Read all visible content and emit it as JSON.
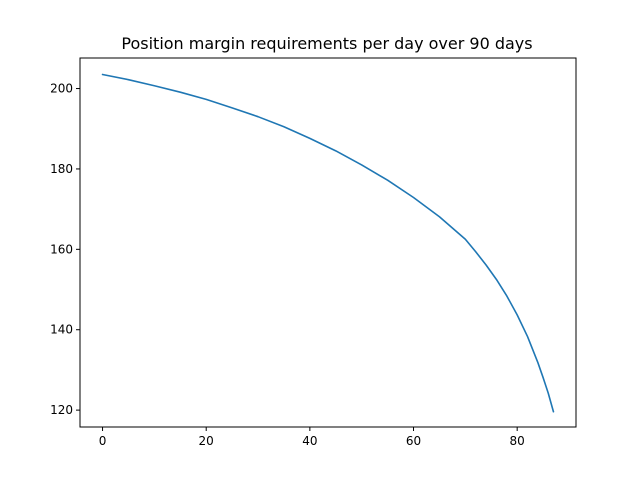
{
  "chart_data": {
    "type": "line",
    "title": "Position margin requirements per day over 90 days",
    "xlabel": "",
    "ylabel": "",
    "xlim": [
      -4.35,
      91.35
    ],
    "ylim": [
      115.8,
      207.6
    ],
    "xticks": [
      0,
      20,
      40,
      60,
      80
    ],
    "yticks": [
      120,
      140,
      160,
      180,
      200
    ],
    "grid": false,
    "legend": "none",
    "colors": {
      "line": "#1f77b4",
      "frame": "#000000"
    },
    "series": [
      {
        "x": [
          0,
          5,
          10,
          15,
          20,
          25,
          30,
          35,
          40,
          45,
          50,
          55,
          60,
          65,
          70,
          72,
          74,
          76,
          78,
          80,
          82,
          84,
          85,
          86,
          87
        ],
        "y": [
          203.5,
          202.2,
          200.7,
          199.1,
          197.3,
          195.2,
          193.0,
          190.5,
          187.6,
          184.5,
          181.0,
          177.2,
          172.9,
          168.1,
          162.5,
          159.4,
          156.1,
          152.5,
          148.4,
          143.7,
          138.3,
          131.8,
          128.1,
          124.2,
          119.6
        ]
      }
    ]
  }
}
